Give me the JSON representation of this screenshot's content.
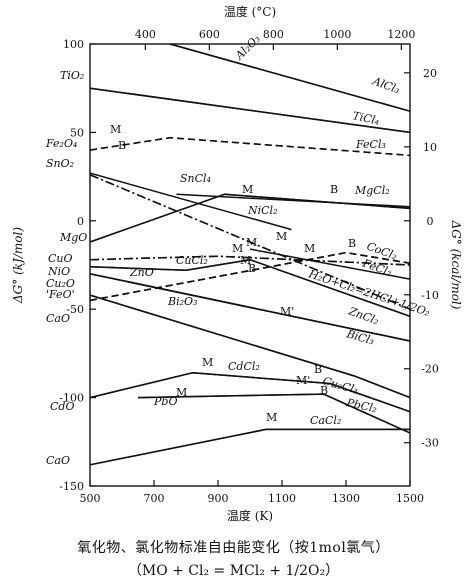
{
  "chart_data": {
    "type": "line",
    "x_axis_bottom": {
      "label": "温度 (K)",
      "range": [
        500,
        1500
      ],
      "ticks": [
        500,
        700,
        900,
        1100,
        1300,
        1500
      ]
    },
    "x_axis_top": {
      "label": "温度 (°C)",
      "range": [
        227,
        1227
      ],
      "ticks": [
        400,
        600,
        800,
        1000,
        1200
      ]
    },
    "y_axis_left": {
      "label": "ΔG° (kJ/mol)",
      "range": [
        -150,
        100
      ],
      "ticks": [
        100,
        50,
        0,
        -50,
        -100,
        -150
      ]
    },
    "y_axis_right": {
      "label": "ΔG° (kcal/mol)",
      "range": [
        -35.85,
        23.9
      ],
      "ticks": [
        20,
        10,
        0,
        -10,
        -20,
        -30
      ]
    },
    "grid": false,
    "series": [
      {
        "name": "Al2O3",
        "style": "solid",
        "x": [
          750,
          1500
        ],
        "y": [
          100,
          62
        ]
      },
      {
        "name": "AlCl3",
        "style": "solid",
        "x": [
          750,
          1500
        ],
        "y": [
          100,
          62
        ]
      },
      {
        "name": "TiO2",
        "style": "solid",
        "x": [
          500,
          1500
        ],
        "y": [
          75,
          50
        ]
      },
      {
        "name": "TiCl4",
        "style": "solid",
        "x": [
          500,
          1500
        ],
        "y": [
          75,
          50
        ]
      },
      {
        "name": "Fe2O4",
        "style": "dashed",
        "x": [
          500,
          750,
          1500
        ],
        "y": [
          40,
          47,
          37
        ]
      },
      {
        "name": "FeCl3",
        "style": "dashed",
        "x": [
          500,
          750,
          1500
        ],
        "y": [
          40,
          47,
          37
        ]
      },
      {
        "name": "SnO2",
        "style": "solid",
        "x": [
          500,
          1130
        ],
        "y": [
          27,
          -5
        ]
      },
      {
        "name": "SnCl4",
        "style": "solid",
        "x": [
          770,
          1500
        ],
        "y": [
          15,
          8
        ]
      },
      {
        "name": "MgO",
        "style": "solid",
        "x": [
          500,
          920,
          1500
        ],
        "y": [
          -12,
          15,
          7
        ]
      },
      {
        "name": "MgCl2",
        "style": "solid",
        "x": [
          500,
          920,
          1500
        ],
        "y": [
          -12,
          15,
          7
        ]
      },
      {
        "name": "NiO",
        "style": "dash-dot",
        "x": [
          500,
          1500
        ],
        "y": [
          26,
          -50
        ]
      },
      {
        "name": "NiCl2",
        "style": "dash-dot",
        "x": [
          500,
          1500
        ],
        "y": [
          26,
          -50
        ]
      },
      {
        "name": "CuO",
        "style": "dash-dot",
        "x": [
          500,
          900,
          1500
        ],
        "y": [
          -22,
          -20,
          -25
        ]
      },
      {
        "name": "CuCl2",
        "style": "dash-dot",
        "x": [
          500,
          900,
          1500
        ],
        "y": [
          -22,
          -20,
          -25
        ]
      },
      {
        "name": "CoCl2",
        "style": "dashed",
        "x": [
          500,
          1300,
          1500
        ],
        "y": [
          -45,
          -18,
          -24
        ]
      },
      {
        "name": "FeCl2",
        "style": "dashed",
        "x": [
          500,
          1300,
          1500
        ],
        "y": [
          -45,
          -18,
          -24
        ]
      },
      {
        "name": "H2O+Cl2=2HCl+1/2O2",
        "style": "solid",
        "x": [
          1000,
          1500
        ],
        "y": [
          -16,
          -33
        ]
      },
      {
        "name": "ZnO",
        "style": "solid",
        "x": [
          500,
          800,
          1000,
          1500
        ],
        "y": [
          -26,
          -28,
          -22,
          -54
        ]
      },
      {
        "name": "ZnCl2",
        "style": "solid",
        "x": [
          500,
          800,
          1000,
          1500
        ],
        "y": [
          -26,
          -28,
          -22,
          -54
        ]
      },
      {
        "name": "Cu2O",
        "style": "solid",
        "x": [
          500,
          1500
        ],
        "y": [
          -30,
          -68
        ]
      },
      {
        "name": "Bi2O3",
        "style": "solid",
        "x": [
          500,
          1500
        ],
        "y": [
          -30,
          -68
        ]
      },
      {
        "name": "BiCl3",
        "style": "solid",
        "x": [
          500,
          1500
        ],
        "y": [
          -30,
          -68
        ]
      },
      {
        "name": "'FeO'",
        "style": "dashed",
        "x": [
          500,
          1300,
          1500
        ],
        "y": [
          -45,
          -18,
          -24
        ]
      },
      {
        "name": "CaO",
        "style": "solid",
        "x": [
          500,
          1330,
          1500
        ],
        "y": [
          -42,
          -88,
          -100
        ]
      },
      {
        "name": "Cu2Cl3",
        "style": "solid",
        "x": [
          500,
          1330,
          1500
        ],
        "y": [
          -42,
          -88,
          -100
        ]
      },
      {
        "name": "CdO",
        "style": "solid",
        "x": [
          500,
          820,
          1250,
          1500
        ],
        "y": [
          -100,
          -86,
          -92,
          -108
        ]
      },
      {
        "name": "CdCl2",
        "style": "solid",
        "x": [
          500,
          820,
          1250,
          1500
        ],
        "y": [
          -100,
          -86,
          -92,
          -108
        ]
      },
      {
        "name": "PbO",
        "style": "solid",
        "x": [
          650,
          1230,
          1500
        ],
        "y": [
          -100,
          -98,
          -120
        ]
      },
      {
        "name": "PbCl2",
        "style": "solid",
        "x": [
          650,
          1230,
          1500
        ],
        "y": [
          -100,
          -98,
          -120
        ]
      },
      {
        "name": "CaO",
        "style": "solid",
        "x": [
          500,
          1050,
          1500
        ],
        "y": [
          -138,
          -118,
          -118
        ]
      },
      {
        "name": "CaCl2",
        "style": "solid",
        "x": [
          500,
          1050,
          1500
        ],
        "y": [
          -138,
          -118,
          -118
        ]
      }
    ],
    "annotations": [
      "M",
      "B",
      "M",
      "B",
      "M",
      "M",
      "M",
      "M",
      "B",
      "M",
      "B",
      "M'",
      "M",
      "B",
      "M",
      "M'",
      "B",
      "M"
    ],
    "species_labels": [
      "Al₂O₃",
      "AlCl₃",
      "TiO₂",
      "TiCl₄",
      "Fe₂O₄",
      "FeCl₃",
      "SnO₂",
      "SnCl₄",
      "MgO",
      "MgCl₂",
      "NiCl₂",
      "NiO",
      "CuO",
      "CuCl₂",
      "Cu₂O",
      "'FeO'",
      "CaO",
      "CoCl₂",
      "FeCl₂",
      "H₂O+Cl₂=2HCl+1/2O₂",
      "ZnO",
      "ZnCl₂",
      "Bi₂O₃",
      "BiCl₃",
      "Cu₂Cl₃",
      "PbCl₂",
      "CdCl₂",
      "CdO",
      "PbO",
      "CaCl₂",
      "CaO"
    ]
  },
  "caption": {
    "line1": "氧化物、氯化物标准自由能变化（按1mol氯气）",
    "line2": "（MO + Cl₂ = MCl₂ + 1/2O₂）"
  }
}
